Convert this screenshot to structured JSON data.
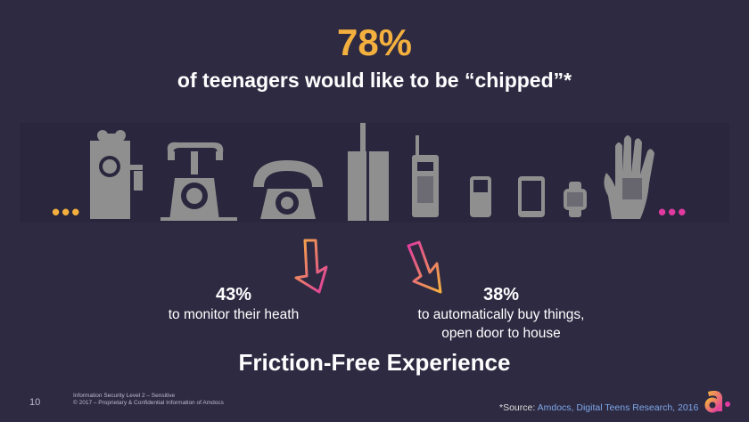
{
  "headline": {
    "percent": "78%",
    "text": "of teenagers would like to be “chipped”*"
  },
  "dots": {
    "left": "•••",
    "right": "•••"
  },
  "devices": [
    "crank-phone",
    "candlestick-rotary-phone",
    "rotary-desk-phone",
    "brick-cell-phone",
    "early-mobile-phone",
    "feature-phone",
    "tablet",
    "smartwatch",
    "hand-chip"
  ],
  "stats": [
    {
      "percent": "43%",
      "description": "to monitor their heath"
    },
    {
      "percent": "38%",
      "description_line1": "to automatically buy things,",
      "description_line2": "open door to house"
    }
  ],
  "tagline": "Friction-Free Experience",
  "footer": {
    "page_number": "10",
    "classification": "Information Security Level 2 – Sensitive",
    "copyright": "© 2017 – Proprietary & Confidential Information of Amdocs",
    "source_prefix": "*Source:",
    "source_link": "Amdocs, Digital Teens Research, 2016"
  },
  "colors": {
    "accent_yellow": "#f4b03e",
    "accent_pink": "#e03aa0",
    "background": "#2e2a42",
    "icon_gray": "#8f8f8f"
  }
}
